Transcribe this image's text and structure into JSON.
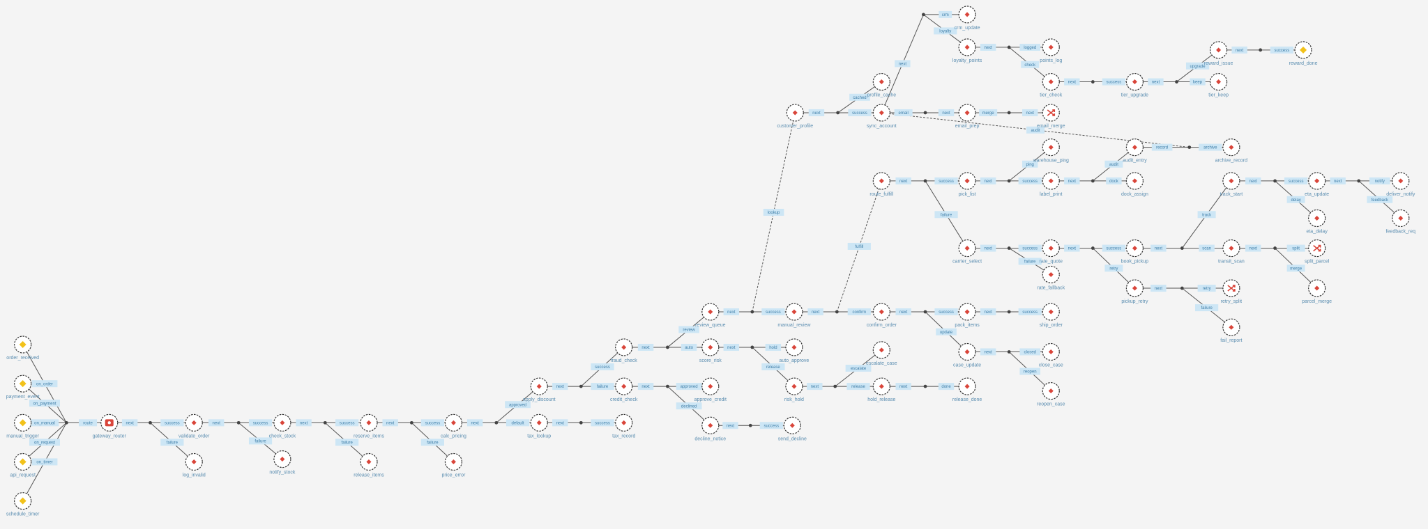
{
  "nodes": [
    "order_received",
    "payment_event",
    "manual_trigger",
    "api_request",
    "schedule_timer",
    "gateway_router",
    "validate_order",
    "log_invalid",
    "check_stock",
    "notify_stock",
    "reserve_items",
    "release_items",
    "calc_pricing",
    "price_error",
    "apply_discount",
    "tax_lookup",
    "fraud_check",
    "credit_check",
    "tax_record",
    "review_queue",
    "score_risk",
    "approve_credit",
    "decline_notice",
    "manual_review",
    "auto_approve",
    "risk_hold",
    "send_decline",
    "confirm_order",
    "escalate_case",
    "hold_release",
    "pack_items",
    "case_update",
    "release_done",
    "ship_order",
    "close_case",
    "reopen_case",
    "customer_profile",
    "profile_cache",
    "sync_account",
    "crm_update",
    "loyalty_points",
    "points_log",
    "tier_check",
    "tier_upgrade",
    "reward_issue",
    "tier_keep",
    "reward_done",
    "email_prep",
    "email_merge",
    "archive_record",
    "audit_entry",
    "warehouse_ping",
    "route_fulfill",
    "pick_list",
    "carrier_select",
    "label_print",
    "rate_quote",
    "rate_fallback",
    "dock_assign",
    "book_pickup",
    "pickup_retry",
    "track_start",
    "transit_scan",
    "eta_update",
    "eta_delay",
    "deliver_notify",
    "feedback_req",
    "split_parcel",
    "parcel_merge",
    "retry_split",
    "fail_report"
  ],
  "edges": [
    "on_order",
    "on_payment",
    "on_manual",
    "on_request",
    "on_timer",
    "route",
    "next",
    "success",
    "failure",
    "next",
    "success",
    "failure",
    "next",
    "success",
    "failure",
    "next",
    "success",
    "failure",
    "next",
    "approved",
    "default",
    "next",
    "success",
    "failure",
    "next",
    "success",
    "next",
    "review",
    "auto",
    "next",
    "approved",
    "declined",
    "next",
    "success",
    "next",
    "hold",
    "release",
    "next",
    "success",
    "next",
    "confirm",
    "next",
    "escalate",
    "release",
    "next",
    "success",
    "update",
    "next",
    "done",
    "next",
    "success",
    "next",
    "closed",
    "reopen",
    "lookup",
    "next",
    "cached",
    "success",
    "next",
    "crm",
    "loyalty",
    "next",
    "logged",
    "check",
    "next",
    "success",
    "next",
    "upgrade",
    "keep",
    "next",
    "success",
    "email",
    "next",
    "merge",
    "next",
    "audit",
    "archive",
    "record",
    "fulfill",
    "next",
    "success",
    "failure",
    "next",
    "ping",
    "success",
    "next",
    "dock",
    "audit",
    "next",
    "success",
    "failure",
    "next",
    "success",
    "retry",
    "next",
    "track",
    "scan",
    "next",
    "success",
    "delay",
    "next",
    "notify",
    "feedback",
    "next",
    "split",
    "merge",
    "next",
    "retry",
    "failure"
  ]
}
